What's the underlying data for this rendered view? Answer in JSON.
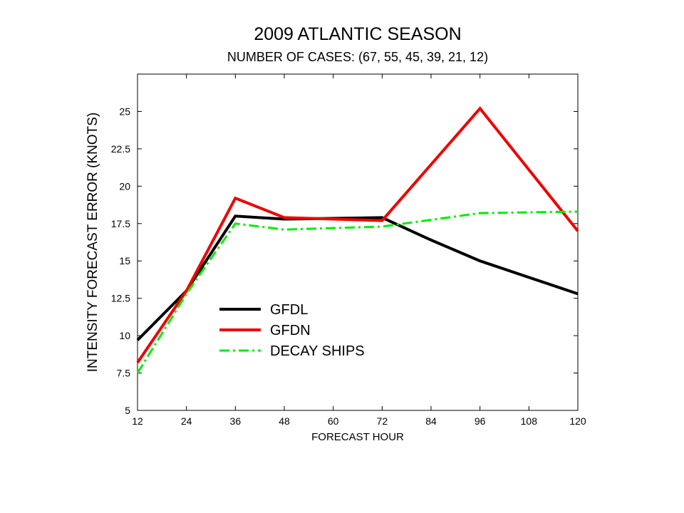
{
  "chart_data": {
    "type": "line",
    "title": "2009 ATLANTIC SEASON",
    "subtitle": "NUMBER OF CASES: (67, 55, 45, 39, 21, 12)",
    "xlabel": "FORECAST HOUR",
    "ylabel": "INTENSITY FORECAST ERROR  (KNOTS)",
    "x": [
      12,
      24,
      36,
      48,
      60,
      72,
      84,
      96,
      108,
      120
    ],
    "xlim": [
      12,
      120
    ],
    "ylim": [
      5,
      27.5
    ],
    "yticks": [
      5,
      7.5,
      10,
      12.5,
      15,
      17.5,
      20,
      22.5,
      25
    ],
    "grid": false,
    "legend_position": "center-left",
    "series": [
      {
        "name": "GFDL",
        "color": "#000000",
        "dash": "solid",
        "x": [
          12,
          24,
          36,
          48,
          72,
          84,
          96,
          120
        ],
        "values": [
          9.7,
          13.0,
          18.0,
          17.8,
          17.9,
          16.4,
          15.0,
          12.8
        ]
      },
      {
        "name": "GFDN",
        "color": "#ee0000",
        "dash": "solid",
        "x": [
          12,
          24,
          36,
          48,
          72,
          96,
          120
        ],
        "values": [
          8.2,
          13.0,
          19.2,
          17.9,
          17.7,
          25.2,
          17.0
        ]
      },
      {
        "name": "DECAY SHIPS",
        "color": "#00ee00",
        "dash": "dashdot",
        "x": [
          12,
          24,
          36,
          48,
          72,
          96,
          120
        ],
        "values": [
          7.5,
          12.8,
          17.5,
          17.1,
          17.3,
          18.2,
          18.3
        ]
      }
    ]
  }
}
